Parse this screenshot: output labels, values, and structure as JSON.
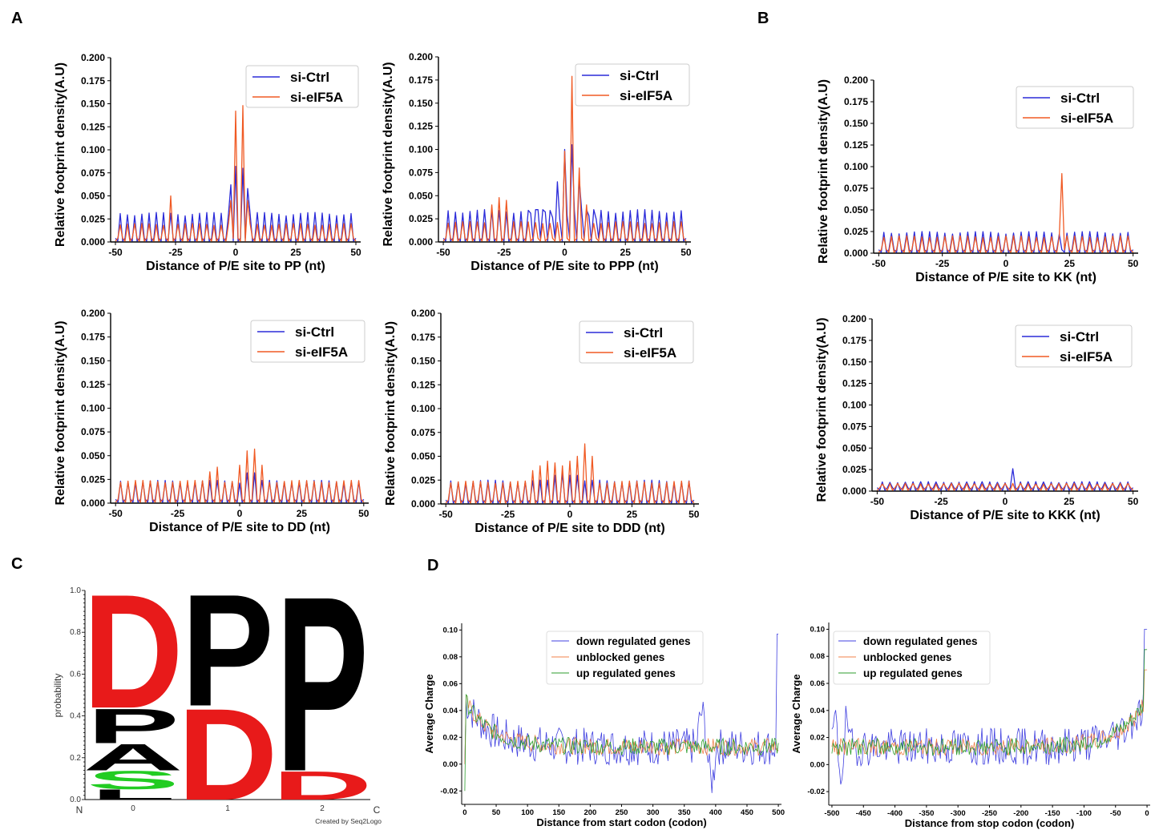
{
  "panels": [
    {
      "letter": "A"
    },
    {
      "letter": "B"
    },
    {
      "letter": "C"
    },
    {
      "letter": "D"
    }
  ],
  "colors": {
    "ctrl": "#2b2bd9",
    "eif5a": "#f05a24",
    "down": "#4040e0",
    "unblocked": "#f0804a",
    "up": "#2e9e2e",
    "logo_d": "#e81a1a",
    "logo_p": "#000000",
    "logo_s": "#22cc22"
  },
  "chart_data": [
    {
      "id": "pp",
      "type": "line",
      "xlabel": "Distance of P/E site to PP (nt)",
      "ylabel": "Relative footprint density(A.U)",
      "xlim": [
        -52,
        52
      ],
      "ylim": [
        0,
        0.2
      ],
      "xticks": [
        -50,
        -25,
        0,
        25,
        50
      ],
      "yticks": [
        0.0,
        0.025,
        0.05,
        0.075,
        0.1,
        0.125,
        0.15,
        0.175,
        0.2
      ],
      "legend": [
        "si-Ctrl",
        "si-eIF5A"
      ],
      "series": [
        {
          "name": "si-Ctrl",
          "base": 0.032,
          "peaks": [
            [
              -2,
              0.062
            ],
            [
              0,
              0.082
            ],
            [
              3,
              0.08
            ],
            [
              5,
              0.058
            ]
          ]
        },
        {
          "name": "si-eIF5A",
          "base": 0.02,
          "peaks": [
            [
              -27,
              0.05
            ],
            [
              -2,
              0.045
            ],
            [
              0,
              0.142
            ],
            [
              3,
              0.148
            ],
            [
              5,
              0.045
            ]
          ]
        }
      ]
    },
    {
      "id": "ppp",
      "type": "line",
      "xlabel": "Distance of P/E site to PPP (nt)",
      "ylabel": "Relative footprint density(A.U)",
      "xlim": [
        -52,
        52
      ],
      "ylim": [
        0,
        0.2
      ],
      "xticks": [
        -50,
        -25,
        0,
        25,
        50
      ],
      "yticks": [
        0.0,
        0.025,
        0.05,
        0.075,
        0.1,
        0.125,
        0.15,
        0.175,
        0.2
      ],
      "legend": [
        "si-Ctrl",
        "si-eIF5A"
      ],
      "series": [
        {
          "name": "si-Ctrl",
          "base": 0.035,
          "peaks": [
            [
              -3,
              0.065
            ],
            [
              0,
              0.1
            ],
            [
              3,
              0.105
            ],
            [
              6,
              0.068
            ]
          ]
        },
        {
          "name": "si-eIF5A",
          "base": 0.022,
          "peaks": [
            [
              -30,
              0.04
            ],
            [
              -27,
              0.048
            ],
            [
              -24,
              0.045
            ],
            [
              0,
              0.098
            ],
            [
              3,
              0.179
            ],
            [
              6,
              0.08
            ],
            [
              9,
              0.04
            ]
          ]
        }
      ]
    },
    {
      "id": "kk",
      "type": "line",
      "xlabel": "Distance of P/E site to KK (nt)",
      "ylabel": "Relative footprint density(A.U)",
      "xlim": [
        -52,
        52
      ],
      "ylim": [
        0,
        0.2
      ],
      "xticks": [
        -50,
        -25,
        0,
        25,
        50
      ],
      "yticks": [
        0.0,
        0.025,
        0.05,
        0.075,
        0.1,
        0.125,
        0.15,
        0.175,
        0.2
      ],
      "legend": [
        "si-Ctrl",
        "si-eIF5A"
      ],
      "series": [
        {
          "name": "si-Ctrl",
          "base": 0.025,
          "peaks": []
        },
        {
          "name": "si-eIF5A",
          "base": 0.02,
          "peaks": [
            [
              22,
              0.092
            ]
          ]
        }
      ]
    },
    {
      "id": "dd",
      "type": "line",
      "xlabel": "Distance of P/E site to DD (nt)",
      "ylabel": "Relative footprint density(A.U)",
      "xlim": [
        -52,
        52
      ],
      "ylim": [
        0,
        0.2
      ],
      "xticks": [
        -50,
        -25,
        0,
        25,
        50
      ],
      "yticks": [
        0.0,
        0.025,
        0.05,
        0.075,
        0.1,
        0.125,
        0.15,
        0.175,
        0.2
      ],
      "legend": [
        "si-Ctrl",
        "si-eIF5A"
      ],
      "series": [
        {
          "name": "si-Ctrl",
          "base": 0.024,
          "peaks": [
            [
              3,
              0.032
            ],
            [
              6,
              0.032
            ]
          ]
        },
        {
          "name": "si-eIF5A",
          "base": 0.024,
          "peaks": [
            [
              -12,
              0.033
            ],
            [
              -9,
              0.038
            ],
            [
              0,
              0.04
            ],
            [
              3,
              0.055
            ],
            [
              6,
              0.057
            ],
            [
              9,
              0.04
            ]
          ]
        }
      ]
    },
    {
      "id": "ddd",
      "type": "line",
      "xlabel": "Distance of P/E site to DDD (nt)",
      "ylabel": "Relative footprint density(A.U)",
      "xlim": [
        -52,
        52
      ],
      "ylim": [
        0,
        0.2
      ],
      "xticks": [
        -50,
        -25,
        0,
        25,
        50
      ],
      "yticks": [
        0.0,
        0.025,
        0.05,
        0.075,
        0.1,
        0.125,
        0.15,
        0.175,
        0.2
      ],
      "legend": [
        "si-Ctrl",
        "si-eIF5A"
      ],
      "series": [
        {
          "name": "si-Ctrl",
          "base": 0.025,
          "peaks": [
            [
              -6,
              0.03
            ],
            [
              -3,
              0.032
            ],
            [
              0,
              0.03
            ],
            [
              3,
              0.03
            ]
          ]
        },
        {
          "name": "si-eIF5A",
          "base": 0.024,
          "peaks": [
            [
              -15,
              0.035
            ],
            [
              -12,
              0.04
            ],
            [
              -9,
              0.045
            ],
            [
              -6,
              0.043
            ],
            [
              -3,
              0.04
            ],
            [
              0,
              0.045
            ],
            [
              3,
              0.05
            ],
            [
              6,
              0.063
            ],
            [
              9,
              0.05
            ]
          ]
        }
      ]
    },
    {
      "id": "kkk",
      "type": "line",
      "xlabel": "Distance of P/E site to KKK (nt)",
      "ylabel": "Relative footprint density(A.U)",
      "xlim": [
        -52,
        52
      ],
      "ylim": [
        0,
        0.2
      ],
      "xticks": [
        -50,
        -25,
        0,
        25,
        50
      ],
      "yticks": [
        0.0,
        0.025,
        0.05,
        0.075,
        0.1,
        0.125,
        0.15,
        0.175,
        0.2
      ],
      "legend": [
        "si-Ctrl",
        "si-eIF5A"
      ],
      "series": [
        {
          "name": "si-Ctrl",
          "base": 0.011,
          "peaks": [
            [
              3,
              0.026
            ]
          ]
        },
        {
          "name": "si-eIF5A",
          "base": 0.009,
          "peaks": []
        }
      ]
    },
    {
      "id": "logo",
      "type": "logo",
      "ylabel": "probability",
      "yticks": [
        0.0,
        0.2,
        0.4,
        0.6,
        0.8,
        1.0
      ],
      "xticks": [
        0,
        1,
        2
      ],
      "n_label": "N",
      "c_label": "C",
      "credit": "Created by Seq2Logo",
      "positions": [
        [
          {
            "letter": "L",
            "p": 0.05
          },
          {
            "letter": "S",
            "p": 0.09
          },
          {
            "letter": "A",
            "p": 0.13
          },
          {
            "letter": "P",
            "p": 0.17
          },
          {
            "letter": "D",
            "p": 0.56
          }
        ],
        [
          {
            "letter": "D",
            "p": 0.45
          },
          {
            "letter": "P",
            "p": 0.55
          }
        ],
        [
          {
            "letter": "D",
            "p": 0.14
          },
          {
            "letter": "P",
            "p": 0.86
          }
        ]
      ]
    },
    {
      "id": "start",
      "type": "line",
      "xlabel": "Distance from start codon (codon)",
      "ylabel": "Average Charge",
      "xlim": [
        -5,
        505
      ],
      "ylim": [
        -0.03,
        0.105
      ],
      "xticks": [
        0,
        50,
        100,
        150,
        200,
        250,
        300,
        350,
        400,
        450,
        500
      ],
      "yticks": [
        -0.02,
        0.0,
        0.02,
        0.04,
        0.06,
        0.08,
        0.1
      ],
      "legend": [
        "down regulated genes",
        "unblocked genes",
        "up regulated genes"
      ]
    },
    {
      "id": "stop",
      "type": "line",
      "xlabel": "Distance from stop codon (codon)",
      "ylabel": "Average Charge",
      "xlim": [
        -505,
        5
      ],
      "ylim": [
        -0.03,
        0.105
      ],
      "xticks": [
        -500,
        -450,
        -400,
        -350,
        -300,
        -250,
        -200,
        -150,
        -100,
        -50,
        0
      ],
      "yticks": [
        -0.02,
        0.0,
        0.02,
        0.04,
        0.06,
        0.08,
        0.1
      ],
      "legend": [
        "down regulated genes",
        "unblocked genes",
        "up regulated genes"
      ]
    }
  ]
}
